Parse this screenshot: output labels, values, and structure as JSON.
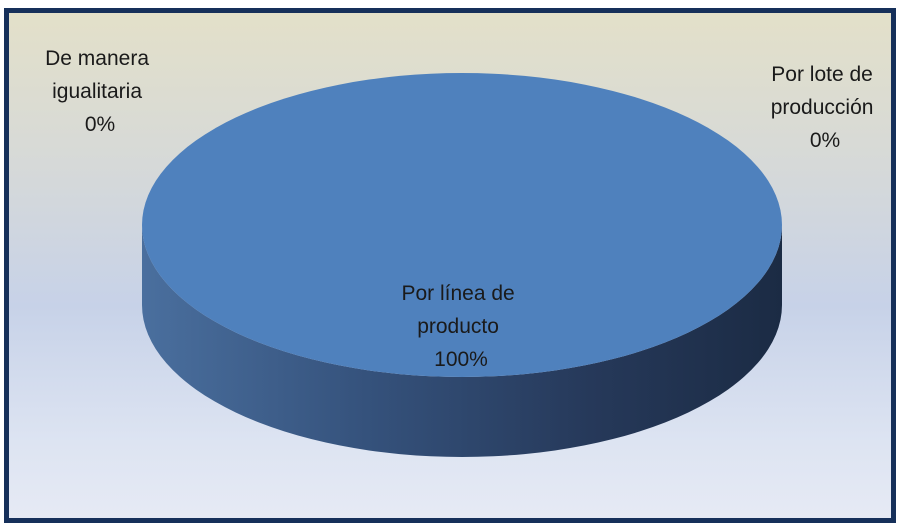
{
  "chart_data": {
    "type": "pie",
    "is_3d": true,
    "slices": [
      {
        "label": "De manera igualitaria",
        "label_lines": [
          "De manera",
          "igualitaria"
        ],
        "percent_label": "0%",
        "value": 0,
        "color": "#4f81bd"
      },
      {
        "label": "Por lote de producción",
        "label_lines": [
          "Por lote de",
          "producción"
        ],
        "percent_label": "0%",
        "value": 0,
        "color": "#4f81bd"
      },
      {
        "label": "Por línea de producto",
        "label_lines": [
          "Por línea de",
          "producto"
        ],
        "percent_label": "100%",
        "value": 100,
        "color": "#4f81bd"
      }
    ]
  },
  "colors": {
    "slice": "#4f81bd",
    "side_dark": "#1f3350",
    "border": "#16305a"
  }
}
